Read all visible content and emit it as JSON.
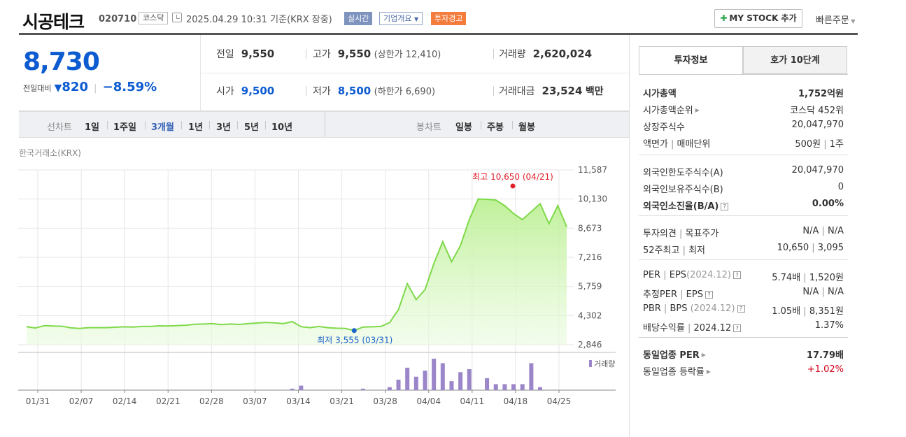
{
  "header": {
    "company_name": "시공테크",
    "code": "020710",
    "market": "코스닥",
    "datetime": "2025.04.29 10:31",
    "basis": "기준(KRX 장중)",
    "badge_realtime": "실시간",
    "badge_company": "기업개요",
    "badge_warning": "투자경고",
    "mystock_label": "MY STOCK 추가",
    "quick_order": "빠른주문"
  },
  "price": {
    "current": "8,730",
    "change_label": "전일대비",
    "change_arrow": "▼",
    "change_value": "820",
    "change_pct": "−8.59%",
    "prev_label": "전일",
    "prev": "9,550",
    "open_label": "시가",
    "open": "9,500",
    "high_label": "고가",
    "high": "9,550",
    "upper_limit": "(상한가 12,410)",
    "low_label": "저가",
    "low": "8,500",
    "lower_limit": "(하한가 6,690)",
    "volume_label": "거래량",
    "volume": "2,620,024",
    "amount_label": "거래대금",
    "amount": "23,524",
    "amount_unit": "백만"
  },
  "period": {
    "line_label": "선차트",
    "line_items": [
      "1일",
      "1주일",
      "3개월",
      "1년",
      "3년",
      "5년",
      "10년"
    ],
    "active": "3개월",
    "candle_label": "봉차트",
    "candle_items": [
      "일봉",
      "주봉",
      "월봉"
    ]
  },
  "source": "한국거래소(KRX)",
  "chart_data": {
    "type": "area",
    "y_ticks": [
      "11,587",
      "10,130",
      "8,673",
      "7,216",
      "5,759",
      "4,302",
      "2,846"
    ],
    "ylim": [
      2846,
      11587
    ],
    "x_ticks": [
      "01/31",
      "02/07",
      "02/14",
      "02/21",
      "02/28",
      "03/07",
      "03/14",
      "03/21",
      "03/28",
      "04/04",
      "04/11",
      "04/18",
      "04/25"
    ],
    "price": [
      3745,
      3680,
      3800,
      3780,
      3770,
      3690,
      3660,
      3700,
      3700,
      3700,
      3720,
      3740,
      3730,
      3760,
      3760,
      3790,
      3780,
      3800,
      3820,
      3870,
      3880,
      3900,
      3850,
      3880,
      3860,
      3900,
      3930,
      3960,
      3940,
      3900,
      4000,
      3750,
      3700,
      3760,
      3700,
      3670,
      3660,
      3555,
      3730,
      3740,
      3760,
      3950,
      4600,
      5900,
      5100,
      5600,
      6900,
      8000,
      7000,
      7800,
      9100,
      10130,
      10120,
      10080,
      9800,
      9400,
      9100,
      9500,
      9900,
      8900,
      9800,
      8730
    ],
    "high_annotation": "최고 10,650 (04/21)",
    "low_annotation": "최저 3,555 (03/31)",
    "volume_label": "거래량",
    "volume": [
      0,
      0,
      0,
      0,
      0,
      0,
      0,
      0,
      0,
      0,
      0,
      0,
      0,
      0,
      0,
      0,
      0,
      0,
      0,
      0,
      0,
      0,
      0,
      0,
      0,
      0,
      0,
      0,
      0,
      0,
      1,
      3,
      0,
      0,
      0,
      0,
      0,
      0,
      1,
      0,
      0,
      2,
      7,
      15,
      9,
      13,
      21,
      18,
      6,
      12,
      14,
      0,
      8,
      4,
      4,
      4,
      4,
      18,
      2,
      0,
      0,
      0
    ]
  },
  "sidebar": {
    "tab_invest": "투자정보",
    "tab_hoga": "호가 10단계",
    "rows1": [
      {
        "label": "시가총액",
        "value": "1,752억원"
      },
      {
        "label": "시가총액순위",
        "value": "코스닥 452위"
      },
      {
        "label": "상장주식수",
        "value": "20,047,970"
      },
      {
        "label": "액면가",
        "label2": "매매단위",
        "value": "500원",
        "value2": "1주"
      }
    ],
    "rows2": [
      {
        "label": "외국인한도주식수(A)",
        "value": "20,047,970"
      },
      {
        "label": "외국인보유주식수(B)",
        "value": "0"
      },
      {
        "label": "외국인소진율(B/A)",
        "value": "0.00%"
      }
    ],
    "rows3": [
      {
        "label": "투자의견",
        "label2": "목표주가",
        "value": "N/A",
        "value2": "N/A"
      },
      {
        "label": "52주최고",
        "label2": "최저",
        "value": "10,650",
        "value2": "3,095"
      }
    ],
    "rows4": [
      {
        "label": "PER",
        "label2": "EPS",
        "label3": "(2024.12)",
        "value": "5.74배",
        "value2": "1,520원"
      },
      {
        "label": "추정PER",
        "label2": "EPS",
        "value": "N/A",
        "value2": "N/A"
      },
      {
        "label": "PBR",
        "label2": "BPS",
        "label3": "(2024.12)",
        "value": "1.05배",
        "value2": "8,351원"
      },
      {
        "label": "배당수익률",
        "label3": "2024.12",
        "value": "1.37%"
      }
    ],
    "rows5": [
      {
        "label": "동일업종 PER",
        "value": "17.79배"
      },
      {
        "label": "동일업종 등락률",
        "value": "+1.02%"
      }
    ]
  }
}
